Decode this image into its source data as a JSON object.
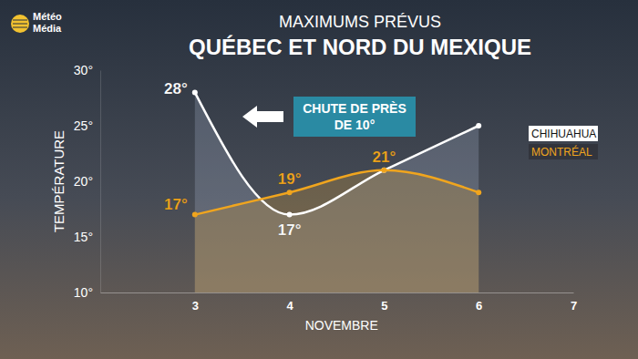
{
  "logo": {
    "lines": [
      "Météo",
      "Média"
    ]
  },
  "chart_data": {
    "type": "line",
    "title": "QUÉBEC ET NORD DU MEXIQUE",
    "subtitle": "MAXIMUMS PRÉVUS",
    "x_label": "NOVEMBRE",
    "y_label": "TEMPÉRATURE",
    "x": [
      3,
      4,
      5,
      6
    ],
    "xlim": [
      2,
      7
    ],
    "xticks": [
      3,
      4,
      5,
      6,
      7
    ],
    "ylim": [
      10,
      30
    ],
    "yticks": [
      {
        "value": 10,
        "label": "10°"
      },
      {
        "value": 15,
        "label": "15°"
      },
      {
        "value": 20,
        "label": "20°"
      },
      {
        "value": 25,
        "label": "25°"
      },
      {
        "value": 30,
        "label": "30°"
      }
    ],
    "grid": false,
    "legend": "right",
    "marker": "circle",
    "data_labels": true,
    "series": [
      {
        "name": "CHIHUAHUA",
        "color": "#ffffff",
        "values": [
          28,
          17,
          21,
          25
        ],
        "value_labels": [
          "28°",
          "17°",
          null,
          null
        ]
      },
      {
        "name": "MONTRÉAL",
        "color": "#f0a51e",
        "values": [
          17,
          19,
          21,
          19
        ],
        "value_labels": [
          "17°",
          "19°",
          "21°",
          null
        ]
      }
    ],
    "annotations": [
      {
        "text_lines": [
          "CHUTE DE PRÈS",
          "DE 10°"
        ]
      }
    ]
  }
}
